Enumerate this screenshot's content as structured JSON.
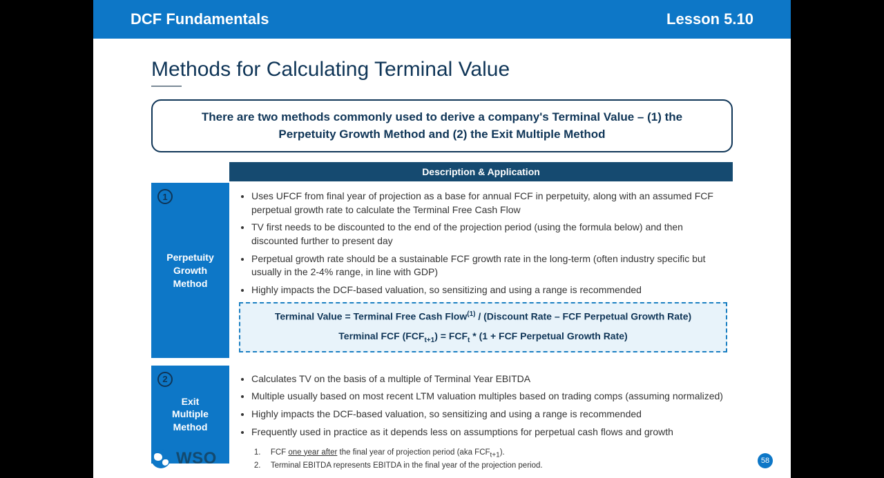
{
  "colors": {
    "page_bg": "#000000",
    "slide_bg": "#ffffff",
    "brand_blue": "#0d77c7",
    "dark_navy": "#0f3557",
    "table_head_bg": "#154a70",
    "formula_bg": "#e8f3fa",
    "formula_border": "#1a7fc2"
  },
  "topbar": {
    "left": "DCF Fundamentals",
    "right": "Lesson 5.10"
  },
  "title": "Methods for Calculating Terminal Value",
  "intro": "There are two methods commonly used to derive a company's Terminal Value – (1) the Perpetuity Growth Method and (2) the Exit Multiple Method",
  "table": {
    "header": "Description & Application",
    "methods": [
      {
        "num": "1",
        "label_line1": "Perpetuity",
        "label_line2": "Growth",
        "label_line3": "Method",
        "bullets": [
          "Uses UFCF from final year of projection as a base for annual FCF in perpetuity, along with an assumed FCF perpetual growth rate to calculate the Terminal Free Cash Flow",
          "TV first needs to be discounted to the end of the projection period (using the formula below) and then discounted further to present day",
          "Perpetual growth rate should be a sustainable FCF growth rate in the long-term (often industry specific but usually in the 2-4% range, in line with GDP)",
          "Highly impacts the DCF-based valuation, so sensitizing and using a range is recommended"
        ],
        "formula": {
          "line1_pre": "Terminal Value = Terminal Free Cash Flow",
          "line1_sup": "(1)",
          "line1_post": " / (Discount Rate – FCF Perpetual Growth Rate)",
          "line2_a": "Terminal FCF (FCF",
          "line2_sub1": "t+1",
          "line2_b": ") = FCF",
          "line2_sub2": "t",
          "line2_c": " * (1 + FCF Perpetual Growth Rate)"
        }
      },
      {
        "num": "2",
        "label_line1": "Exit",
        "label_line2": "Multiple",
        "label_line3": "Method",
        "bullets": [
          "Calculates TV on the basis of a multiple of Terminal Year EBITDA",
          "Multiple usually based on most recent LTM valuation multiples based on trading comps (assuming normalized)",
          "Highly impacts the DCF-based valuation, so sensitizing and using a range is recommended",
          "Frequently used in practice as it depends less on assumptions for perpetual cash flows and growth"
        ]
      }
    ]
  },
  "logo_text": "WSO",
  "footnotes": {
    "fn1_num": "1.",
    "fn1_a": "FCF ",
    "fn1_u": "one year after",
    "fn1_b": " the final year of projection period (aka FCF",
    "fn1_sub": "t+1",
    "fn1_c": ").",
    "fn2_num": "2.",
    "fn2": "Terminal EBITDA represents EBITDA in the final year of the projection period."
  },
  "page_number": "58"
}
